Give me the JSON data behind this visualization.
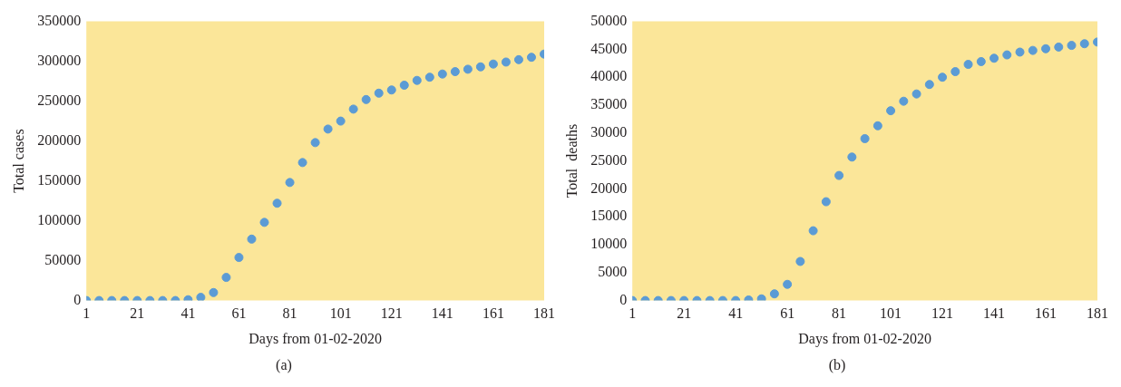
{
  "chart_data": [
    {
      "type": "scatter",
      "xlabel": "Days from 01-02-2020",
      "ylabel": "Total cases",
      "annotations": [
        "(a)"
      ],
      "marker": "circle",
      "grid": false,
      "xlim": [
        1,
        181
      ],
      "xticks": [
        1,
        21,
        41,
        61,
        81,
        101,
        121,
        141,
        161,
        181
      ],
      "ylim": [
        0,
        350000
      ],
      "yticks": [
        0,
        50000,
        100000,
        150000,
        200000,
        250000,
        300000,
        350000
      ],
      "series": [
        {
          "color": "#5b9bd5",
          "x": [
            1,
            6,
            11,
            16,
            21,
            26,
            31,
            36,
            41,
            46,
            51,
            56,
            61,
            66,
            71,
            76,
            81,
            86,
            91,
            96,
            101,
            106,
            111,
            116,
            121,
            126,
            131,
            136,
            141,
            146,
            151,
            156,
            161,
            166,
            171,
            176,
            181
          ],
          "values": [
            0,
            0,
            0,
            0,
            0,
            0,
            0,
            0,
            1000,
            4000,
            10000,
            29000,
            54000,
            77000,
            98000,
            122000,
            148000,
            173000,
            198000,
            215000,
            225000,
            240000,
            252000,
            260000,
            264000,
            270000,
            276000,
            280000,
            284000,
            287000,
            290000,
            293000,
            296500,
            299000,
            302000,
            305000,
            309000
          ]
        }
      ]
    },
    {
      "type": "scatter",
      "xlabel": "Days from 01-02-2020",
      "ylabel": "Total  deaths",
      "annotations": [
        "(b)"
      ],
      "marker": "circle",
      "grid": false,
      "xlim": [
        1,
        181
      ],
      "xticks": [
        1,
        21,
        41,
        61,
        81,
        101,
        121,
        141,
        161,
        181
      ],
      "ylim": [
        0,
        50000
      ],
      "yticks": [
        0,
        5000,
        10000,
        15000,
        20000,
        25000,
        30000,
        35000,
        40000,
        45000,
        50000
      ],
      "series": [
        {
          "color": "#5b9bd5",
          "x": [
            1,
            6,
            11,
            16,
            21,
            26,
            31,
            36,
            41,
            46,
            51,
            56,
            61,
            66,
            71,
            76,
            81,
            86,
            91,
            96,
            101,
            106,
            111,
            116,
            121,
            126,
            131,
            136,
            141,
            146,
            151,
            156,
            161,
            166,
            171,
            176,
            181
          ],
          "values": [
            0,
            0,
            0,
            0,
            0,
            0,
            0,
            0,
            0,
            100,
            300,
            1200,
            2900,
            7000,
            12500,
            17700,
            22400,
            25700,
            29000,
            31300,
            34000,
            35700,
            37000,
            38700,
            40000,
            41000,
            42300,
            42800,
            43400,
            44000,
            44500,
            44800,
            45100,
            45400,
            45700,
            46000,
            46300
          ]
        }
      ]
    }
  ]
}
